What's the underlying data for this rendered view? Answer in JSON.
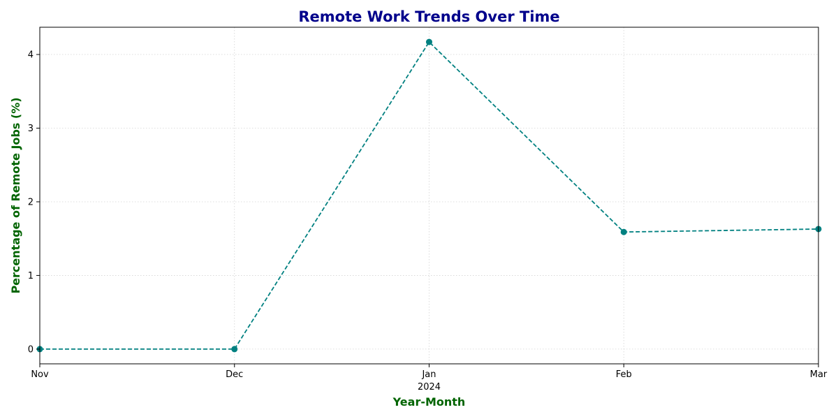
{
  "colors": {
    "title": "#00008b",
    "axis_label": "#006400",
    "series": "#008080",
    "grid": "#d3d3d3"
  },
  "chart_data": {
    "type": "line",
    "title": "Remote Work Trends Over Time",
    "xlabel": "Year-Month",
    "ylabel": "Percentage of Remote Jobs (%)",
    "x": [
      "2023-11",
      "2023-12",
      "2024-01",
      "2024-02",
      "2024-03"
    ],
    "x_tick_labels": [
      "Nov",
      "Dec",
      "Jan",
      "Feb",
      "Mar"
    ],
    "x_year_label": "2024",
    "series": [
      {
        "values": [
          0.0,
          0.0,
          4.17,
          1.59,
          1.63
        ],
        "line_style": "dashed",
        "marker": "circle"
      }
    ],
    "xlim": [
      "2023-11",
      "2024-03"
    ],
    "ylim": [
      -0.2,
      4.37
    ],
    "y_ticks": [
      0,
      1,
      2,
      3,
      4
    ],
    "grid": true,
    "legend": false
  }
}
